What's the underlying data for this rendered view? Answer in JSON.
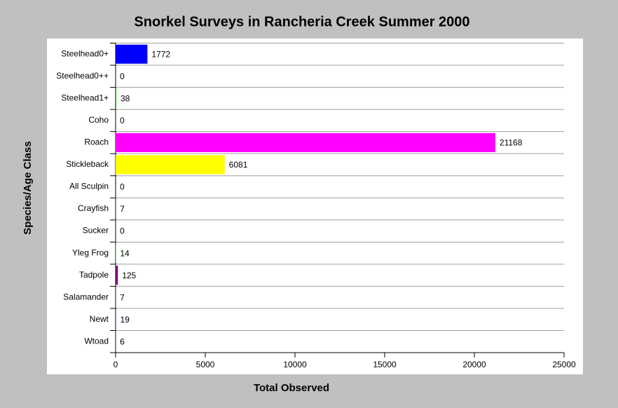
{
  "chart_data": {
    "type": "bar",
    "orientation": "horizontal",
    "title": "Snorkel Surveys in Rancheria Creek Summer 2000",
    "x_label": "Total Observed",
    "y_label": "Species/Age Class",
    "categories": [
      "Steelhead0+",
      "Steelhead0++",
      "Steelhead1+",
      "Coho",
      "Roach",
      "Stickleback",
      "All Sculpin",
      "Crayfish",
      "Sucker",
      "Yleg Frog",
      "Tadpole",
      "Salamander",
      "Newt",
      "Wtoad"
    ],
    "values": [
      1772,
      0,
      38,
      0,
      21168,
      6081,
      0,
      7,
      0,
      14,
      125,
      7,
      19,
      6
    ],
    "colors": [
      "#0000ff",
      "#00ffff",
      "#00c000",
      "#808080",
      "#ff00ff",
      "#ffff00",
      "#ff8000",
      "#008080",
      "#804000",
      "#00ff00",
      "#800080",
      "#ff0000",
      "#000080",
      "#808000"
    ],
    "xlim": [
      0,
      25000
    ],
    "xticks": [
      0,
      5000,
      10000,
      15000,
      20000,
      25000
    ],
    "grid": true
  }
}
